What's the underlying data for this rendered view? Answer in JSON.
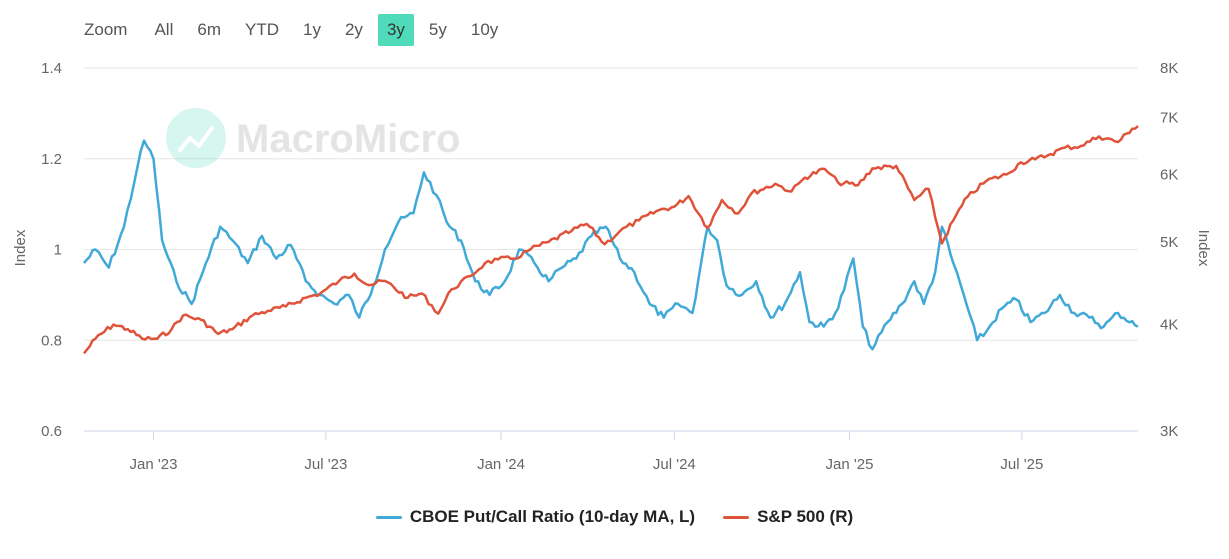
{
  "zoom": {
    "label": "Zoom",
    "buttons": [
      "All",
      "6m",
      "YTD",
      "1y",
      "2y",
      "3y",
      "5y",
      "10y"
    ],
    "active": "3y"
  },
  "watermark": "MacroMicro",
  "colors": {
    "put_call": "#41a9d8",
    "sp500": "#e0533b",
    "active_zoom": "#4fdbb9",
    "grid": "#e6e6e6"
  },
  "chart_data": {
    "type": "line",
    "x_ticks": [
      "Jan '23",
      "Jul '23",
      "Jan '24",
      "Jul '24",
      "Jan '25",
      "Jul '25"
    ],
    "x_range": [
      "2022-10-20",
      "2025-10-31"
    ],
    "y_left": {
      "label": "Index",
      "ticks": [
        "0.6",
        "0.8",
        "1",
        "1.2",
        "1.4"
      ],
      "range": [
        0.6,
        1.4
      ]
    },
    "y_right": {
      "label": "Index",
      "ticks": [
        "3K",
        "4K",
        "5K",
        "6K",
        "7K",
        "8K"
      ],
      "range": [
        3000,
        8000
      ],
      "scale": "log"
    },
    "series": [
      {
        "name": "CBOE Put/Call Ratio (10-day MA, L)",
        "axis": "left",
        "points": [
          [
            "2022-10-20",
            0.97
          ],
          [
            "2022-11-01",
            1.0
          ],
          [
            "2022-11-15",
            0.96
          ],
          [
            "2022-12-01",
            1.05
          ],
          [
            "2022-12-15",
            1.18
          ],
          [
            "2022-12-22",
            1.24
          ],
          [
            "2023-01-01",
            1.2
          ],
          [
            "2023-01-10",
            1.02
          ],
          [
            "2023-01-25",
            0.93
          ],
          [
            "2023-02-10",
            0.88
          ],
          [
            "2023-02-25",
            0.97
          ],
          [
            "2023-03-12",
            1.05
          ],
          [
            "2023-03-25",
            1.02
          ],
          [
            "2023-04-10",
            0.97
          ],
          [
            "2023-04-25",
            1.03
          ],
          [
            "2023-05-10",
            0.98
          ],
          [
            "2023-05-25",
            1.01
          ],
          [
            "2023-06-10",
            0.93
          ],
          [
            "2023-06-25",
            0.9
          ],
          [
            "2023-07-10",
            0.88
          ],
          [
            "2023-07-25",
            0.9
          ],
          [
            "2023-08-05",
            0.85
          ],
          [
            "2023-08-20",
            0.92
          ],
          [
            "2023-09-01",
            1.0
          ],
          [
            "2023-09-15",
            1.06
          ],
          [
            "2023-10-01",
            1.08
          ],
          [
            "2023-10-12",
            1.17
          ],
          [
            "2023-10-25",
            1.12
          ],
          [
            "2023-11-05",
            1.06
          ],
          [
            "2023-11-20",
            1.02
          ],
          [
            "2023-12-05",
            0.93
          ],
          [
            "2023-12-20",
            0.9
          ],
          [
            "2024-01-05",
            0.93
          ],
          [
            "2024-01-20",
            1.0
          ],
          [
            "2024-02-05",
            0.97
          ],
          [
            "2024-02-20",
            0.93
          ],
          [
            "2024-03-05",
            0.96
          ],
          [
            "2024-03-20",
            0.98
          ],
          [
            "2024-04-05",
            1.03
          ],
          [
            "2024-04-20",
            1.05
          ],
          [
            "2024-05-05",
            0.98
          ],
          [
            "2024-05-20",
            0.95
          ],
          [
            "2024-06-05",
            0.88
          ],
          [
            "2024-06-20",
            0.85
          ],
          [
            "2024-07-05",
            0.88
          ],
          [
            "2024-07-20",
            0.86
          ],
          [
            "2024-08-05",
            1.05
          ],
          [
            "2024-08-15",
            1.02
          ],
          [
            "2024-08-25",
            0.92
          ],
          [
            "2024-09-10",
            0.9
          ],
          [
            "2024-09-25",
            0.93
          ],
          [
            "2024-10-10",
            0.85
          ],
          [
            "2024-10-25",
            0.88
          ],
          [
            "2024-11-10",
            0.95
          ],
          [
            "2024-11-20",
            0.84
          ],
          [
            "2024-12-05",
            0.83
          ],
          [
            "2024-12-20",
            0.87
          ],
          [
            "2025-01-05",
            0.98
          ],
          [
            "2025-01-15",
            0.83
          ],
          [
            "2025-01-25",
            0.78
          ],
          [
            "2025-02-10",
            0.84
          ],
          [
            "2025-02-25",
            0.88
          ],
          [
            "2025-03-10",
            0.93
          ],
          [
            "2025-03-20",
            0.88
          ],
          [
            "2025-04-01",
            0.95
          ],
          [
            "2025-04-08",
            1.05
          ],
          [
            "2025-04-20",
            0.97
          ],
          [
            "2025-05-01",
            0.9
          ],
          [
            "2025-05-15",
            0.8
          ],
          [
            "2025-05-25",
            0.82
          ],
          [
            "2025-06-10",
            0.87
          ],
          [
            "2025-06-25",
            0.89
          ],
          [
            "2025-07-10",
            0.84
          ],
          [
            "2025-07-25",
            0.86
          ],
          [
            "2025-08-10",
            0.9
          ],
          [
            "2025-08-25",
            0.86
          ],
          [
            "2025-09-10",
            0.85
          ],
          [
            "2025-09-25",
            0.83
          ],
          [
            "2025-10-10",
            0.86
          ],
          [
            "2025-10-31",
            0.83
          ]
        ]
      },
      {
        "name": "S&P 500 (R)",
        "axis": "right",
        "points": [
          [
            "2022-10-20",
            3700
          ],
          [
            "2022-11-01",
            3850
          ],
          [
            "2022-11-20",
            4000
          ],
          [
            "2022-12-05",
            3950
          ],
          [
            "2022-12-20",
            3850
          ],
          [
            "2023-01-05",
            3850
          ],
          [
            "2023-01-20",
            3950
          ],
          [
            "2023-02-01",
            4100
          ],
          [
            "2023-02-20",
            4050
          ],
          [
            "2023-03-10",
            3900
          ],
          [
            "2023-03-25",
            3950
          ],
          [
            "2023-04-15",
            4100
          ],
          [
            "2023-05-01",
            4150
          ],
          [
            "2023-05-20",
            4200
          ],
          [
            "2023-06-10",
            4300
          ],
          [
            "2023-06-25",
            4350
          ],
          [
            "2023-07-15",
            4500
          ],
          [
            "2023-07-31",
            4590
          ],
          [
            "2023-08-15",
            4450
          ],
          [
            "2023-09-01",
            4500
          ],
          [
            "2023-09-25",
            4300
          ],
          [
            "2023-10-10",
            4350
          ],
          [
            "2023-10-27",
            4120
          ],
          [
            "2023-11-10",
            4400
          ],
          [
            "2023-11-30",
            4560
          ],
          [
            "2023-12-15",
            4720
          ],
          [
            "2023-12-29",
            4770
          ],
          [
            "2024-01-15",
            4780
          ],
          [
            "2024-02-01",
            4900
          ],
          [
            "2024-02-20",
            5000
          ],
          [
            "2024-03-15",
            5150
          ],
          [
            "2024-03-31",
            5250
          ],
          [
            "2024-04-19",
            4970
          ],
          [
            "2024-05-05",
            5150
          ],
          [
            "2024-05-25",
            5300
          ],
          [
            "2024-06-15",
            5450
          ],
          [
            "2024-07-01",
            5500
          ],
          [
            "2024-07-16",
            5660
          ],
          [
            "2024-08-05",
            5190
          ],
          [
            "2024-08-20",
            5600
          ],
          [
            "2024-09-06",
            5400
          ],
          [
            "2024-09-20",
            5700
          ],
          [
            "2024-10-15",
            5850
          ],
          [
            "2024-11-01",
            5730
          ],
          [
            "2024-11-15",
            5950
          ],
          [
            "2024-12-06",
            6090
          ],
          [
            "2024-12-20",
            5870
          ],
          [
            "2025-01-10",
            5830
          ],
          [
            "2025-01-25",
            6100
          ],
          [
            "2025-02-19",
            6140
          ],
          [
            "2025-03-10",
            5600
          ],
          [
            "2025-03-25",
            5770
          ],
          [
            "2025-04-08",
            4980
          ],
          [
            "2025-04-20",
            5300
          ],
          [
            "2025-05-05",
            5650
          ],
          [
            "2025-05-25",
            5900
          ],
          [
            "2025-06-15",
            6000
          ],
          [
            "2025-06-30",
            6200
          ],
          [
            "2025-07-15",
            6250
          ],
          [
            "2025-07-31",
            6340
          ],
          [
            "2025-08-15",
            6450
          ],
          [
            "2025-09-01",
            6480
          ],
          [
            "2025-09-20",
            6650
          ],
          [
            "2025-10-10",
            6550
          ],
          [
            "2025-10-25",
            6790
          ],
          [
            "2025-10-31",
            6840
          ]
        ]
      }
    ],
    "legend": [
      "CBOE Put/Call Ratio (10-day MA, L)",
      "S&P 500 (R)"
    ],
    "legend_position": "bottom-center",
    "grid": true
  }
}
